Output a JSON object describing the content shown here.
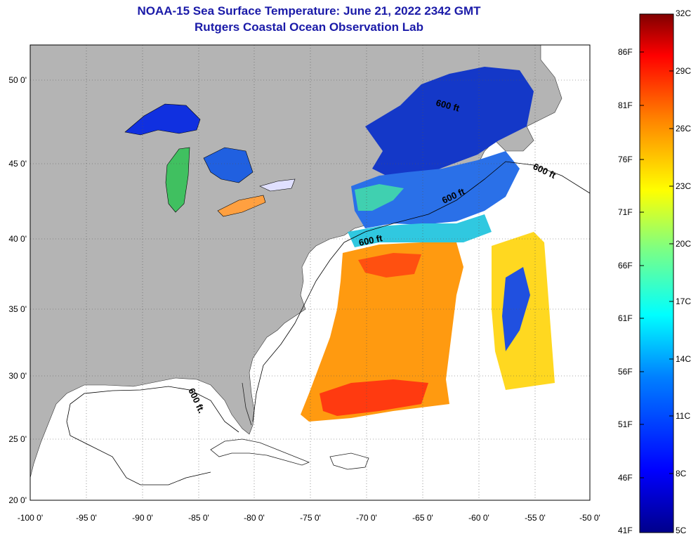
{
  "title": "NOAA-15 Sea Surface Temperature:  June 21, 2022 2342 GMT",
  "subtitle": "Rutgers Coastal Ocean Observation Lab",
  "map": {
    "lat_labels": [
      "50 0'",
      "45 0'",
      "40 0'",
      "35 0'",
      "30 0'",
      "25 0'",
      "20 0'"
    ],
    "lon_labels": [
      "-100 0'",
      "-95 0'",
      "-90 0'",
      "-85 0'",
      "-80 0'",
      "-75 0'",
      "-70 0'",
      "-65 0'",
      "-60 0'",
      "-55 0'",
      "-50 0'"
    ],
    "contour_label": "600 ft",
    "contour_label_gulf": "600 ft.",
    "land_color": "#b4b4b4",
    "water_color": "#ffffff"
  },
  "colorbar": {
    "celsius_labels": [
      "32C",
      "29C",
      "26C",
      "23C",
      "20C",
      "17C",
      "14C",
      "11C",
      "8C",
      "5C"
    ],
    "fahrenheit_labels": [
      "86F",
      "81F",
      "76F",
      "71F",
      "66F",
      "61F",
      "56F",
      "51F",
      "46F",
      "41F"
    ],
    "colors": [
      "#00008b",
      "#0000ff",
      "#0080ff",
      "#00ffff",
      "#80ff80",
      "#ffff00",
      "#ff8000",
      "#ff0000",
      "#800000"
    ]
  }
}
